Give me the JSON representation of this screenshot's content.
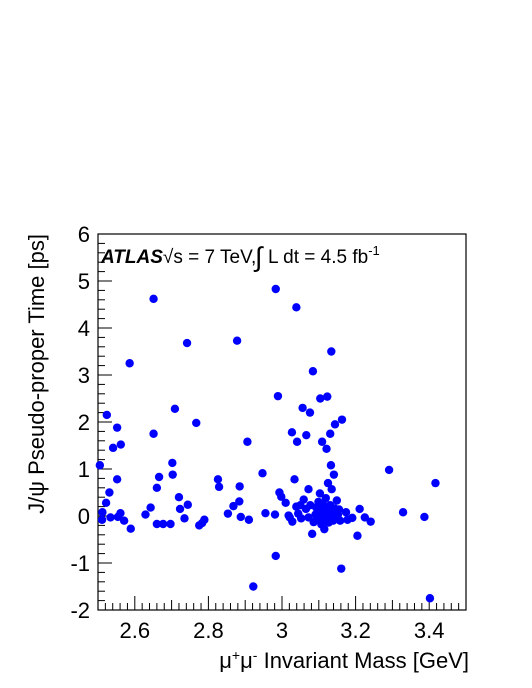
{
  "chart_data": {
    "type": "scatter",
    "xlabel_parts": [
      "μ",
      "+",
      "μ",
      "-",
      " Invariant Mass [GeV]"
    ],
    "ylabel": "J/ψ Pseudo-proper Time [ps]",
    "annotation": {
      "experiment": "ATLAS",
      "energy": "√s = 7 TeV,",
      "lumi_prefix": "L dt = 4.5 fb",
      "lumi_exp": "-1"
    },
    "xlim": [
      2.5,
      3.5
    ],
    "ylim": [
      -2,
      6
    ],
    "x_ticks": [
      2.6,
      2.8,
      3.0,
      3.2,
      3.4
    ],
    "x_tick_labels": [
      "2.6",
      "2.8",
      "3",
      "3.2",
      "3.4"
    ],
    "y_ticks": [
      -2,
      -1,
      0,
      1,
      2,
      3,
      4,
      5,
      6
    ],
    "y_tick_labels": [
      "-2",
      "-1",
      "0",
      "1",
      "2",
      "3",
      "4",
      "5",
      "6"
    ],
    "marker_color": "#0000ff",
    "points": [
      [
        2.651,
        4.62
      ],
      [
        2.586,
        3.25
      ],
      [
        2.742,
        3.68
      ],
      [
        2.878,
        3.73
      ],
      [
        2.983,
        4.83
      ],
      [
        3.039,
        4.44
      ],
      [
        2.524,
        2.15
      ],
      [
        2.552,
        1.88
      ],
      [
        2.562,
        1.52
      ],
      [
        2.541,
        1.45
      ],
      [
        2.505,
        1.08
      ],
      [
        2.651,
        1.75
      ],
      [
        2.709,
        2.28
      ],
      [
        2.767,
        1.98
      ],
      [
        2.906,
        1.58
      ],
      [
        2.989,
        2.55
      ],
      [
        3.027,
        1.78
      ],
      [
        3.056,
        2.3
      ],
      [
        3.076,
        2.2
      ],
      [
        3.084,
        3.08
      ],
      [
        3.104,
        2.5
      ],
      [
        3.134,
        3.5
      ],
      [
        3.123,
        2.54
      ],
      [
        3.144,
        1.95
      ],
      [
        3.163,
        2.05
      ],
      [
        3.131,
        1.75
      ],
      [
        3.041,
        1.58
      ],
      [
        3.066,
        1.72
      ],
      [
        3.109,
        1.58
      ],
      [
        3.121,
        1.43
      ],
      [
        2.512,
        0.08
      ],
      [
        2.522,
        0.28
      ],
      [
        2.531,
        0.5
      ],
      [
        2.552,
        0.78
      ],
      [
        2.534,
        -0.03
      ],
      [
        2.511,
        -0.08
      ],
      [
        2.554,
        -0.02
      ],
      [
        2.571,
        -0.1
      ],
      [
        2.589,
        -0.27
      ],
      [
        2.561,
        0.06
      ],
      [
        2.629,
        0.03
      ],
      [
        2.66,
        0.6
      ],
      [
        2.666,
        0.83
      ],
      [
        2.643,
        0.18
      ],
      [
        2.66,
        -0.17
      ],
      [
        2.677,
        -0.17
      ],
      [
        2.697,
        -0.17
      ],
      [
        2.703,
        0.88
      ],
      [
        2.702,
        1.13
      ],
      [
        2.72,
        0.4
      ],
      [
        2.723,
        0.15
      ],
      [
        2.744,
        0.24
      ],
      [
        2.735,
        -0.05
      ],
      [
        2.775,
        -0.2
      ],
      [
        2.783,
        -0.15
      ],
      [
        2.789,
        -0.08
      ],
      [
        2.826,
        0.78
      ],
      [
        2.829,
        0.62
      ],
      [
        2.853,
        0.05
      ],
      [
        2.868,
        0.21
      ],
      [
        2.884,
        0.31
      ],
      [
        2.885,
        0.63
      ],
      [
        2.888,
        -0.02
      ],
      [
        2.91,
        -0.08
      ],
      [
        2.922,
        -1.5
      ],
      [
        2.947,
        0.91
      ],
      [
        2.955,
        0.06
      ],
      [
        2.983,
        -0.85
      ],
      [
        2.981,
        0.03
      ],
      [
        2.993,
        0.5
      ],
      [
        2.998,
        0.41
      ],
      [
        3.01,
        0.28
      ],
      [
        3.021,
        -0.03
      ],
      [
        3.018,
        0.01
      ],
      [
        3.028,
        -0.12
      ],
      [
        3.034,
        0.78
      ],
      [
        3.039,
        0.2
      ],
      [
        3.044,
        0.05
      ],
      [
        3.05,
        0.23
      ],
      [
        3.052,
        -0.05
      ],
      [
        3.059,
        0.35
      ],
      [
        3.065,
        0.15
      ],
      [
        3.072,
        -0.03
      ],
      [
        3.072,
        0.57
      ],
      [
        3.077,
        0.23
      ],
      [
        3.082,
        -0.38
      ],
      [
        3.086,
        -0.13
      ],
      [
        3.091,
        0.03
      ],
      [
        3.093,
        0.18
      ],
      [
        3.095,
        -0.08
      ],
      [
        3.097,
        0.08
      ],
      [
        3.099,
        0.3
      ],
      [
        3.101,
        -0.05
      ],
      [
        3.103,
        0.48
      ],
      [
        3.105,
        0.13
      ],
      [
        3.107,
        -0.18
      ],
      [
        3.108,
        0.02
      ],
      [
        3.111,
        0.26
      ],
      [
        3.113,
        0.05
      ],
      [
        3.115,
        -0.28
      ],
      [
        3.117,
        0.12
      ],
      [
        3.119,
        0.38
      ],
      [
        3.12,
        -0.05
      ],
      [
        3.123,
        0.18
      ],
      [
        3.125,
        0.7
      ],
      [
        3.127,
        -0.14
      ],
      [
        3.129,
        0.05
      ],
      [
        3.131,
        0.23
      ],
      [
        3.133,
        1.08
      ],
      [
        3.135,
        0.57
      ],
      [
        3.137,
        0.03
      ],
      [
        3.139,
        -0.1
      ],
      [
        3.141,
        0.88
      ],
      [
        3.143,
        0.16
      ],
      [
        3.146,
        -0.05
      ],
      [
        3.149,
        0.33
      ],
      [
        3.152,
        0.03
      ],
      [
        3.155,
        0.14
      ],
      [
        3.158,
        -0.1
      ],
      [
        3.161,
        -1.12
      ],
      [
        3.174,
        0.08
      ],
      [
        3.178,
        -0.08
      ],
      [
        3.191,
        -0.04
      ],
      [
        3.205,
        -0.42
      ],
      [
        3.211,
        0.15
      ],
      [
        3.225,
        -0.03
      ],
      [
        3.241,
        -0.12
      ],
      [
        3.291,
        0.98
      ],
      [
        3.329,
        0.08
      ],
      [
        3.387,
        -0.02
      ],
      [
        3.417,
        0.7
      ],
      [
        3.402,
        -1.75
      ]
    ]
  }
}
